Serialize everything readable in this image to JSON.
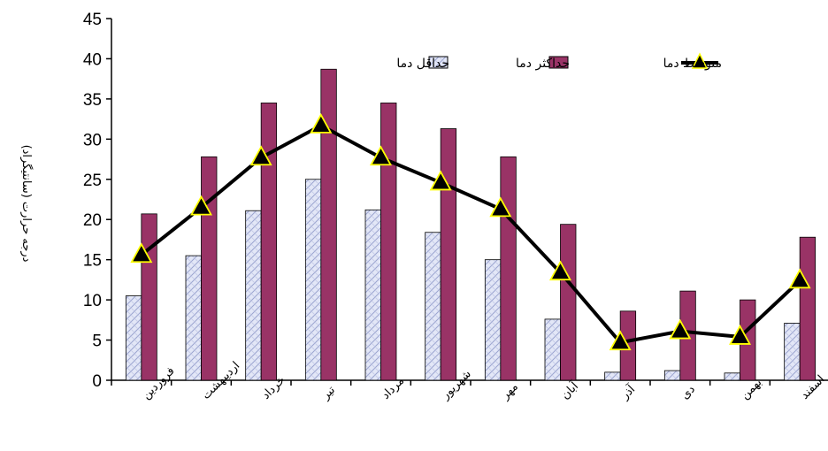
{
  "chart_data": {
    "type": "bar",
    "categories": [
      "فروردین",
      "اردیبهشت",
      "خرداد",
      "تیر",
      "مرداد",
      "شهریور",
      "مهر",
      "آبان",
      "آذر",
      "دی",
      "بهمن",
      "اسفند"
    ],
    "series": [
      {
        "name": "حداقل دما",
        "type": "bar",
        "color": "#dfe3f5",
        "pattern": "crosshatch",
        "values": [
          10.5,
          15.5,
          21.1,
          25.0,
          21.2,
          18.4,
          15.0,
          7.6,
          1.0,
          1.2,
          0.9,
          7.1
        ]
      },
      {
        "name": "حداکثر دما",
        "type": "bar",
        "color": "#993366",
        "values": [
          20.7,
          27.8,
          34.5,
          38.7,
          34.5,
          31.3,
          27.8,
          19.4,
          8.6,
          11.1,
          10.0,
          17.8
        ]
      },
      {
        "name": "متوسط دما",
        "type": "line",
        "color": "#000000",
        "marker": "triangle",
        "marker_color": "#ffff00",
        "values": [
          15.6,
          21.5,
          27.7,
          31.7,
          27.7,
          24.6,
          21.3,
          13.4,
          4.7,
          6.1,
          5.4,
          12.4
        ]
      }
    ],
    "ylabel": "درجه حرارت (سانتیگراد)",
    "ylim": [
      0,
      45
    ],
    "yticks": [
      "0",
      "5",
      "10",
      "15",
      "20",
      "25",
      "30",
      "35",
      "40",
      "45"
    ],
    "grid": false,
    "legend_position": "top-right"
  }
}
